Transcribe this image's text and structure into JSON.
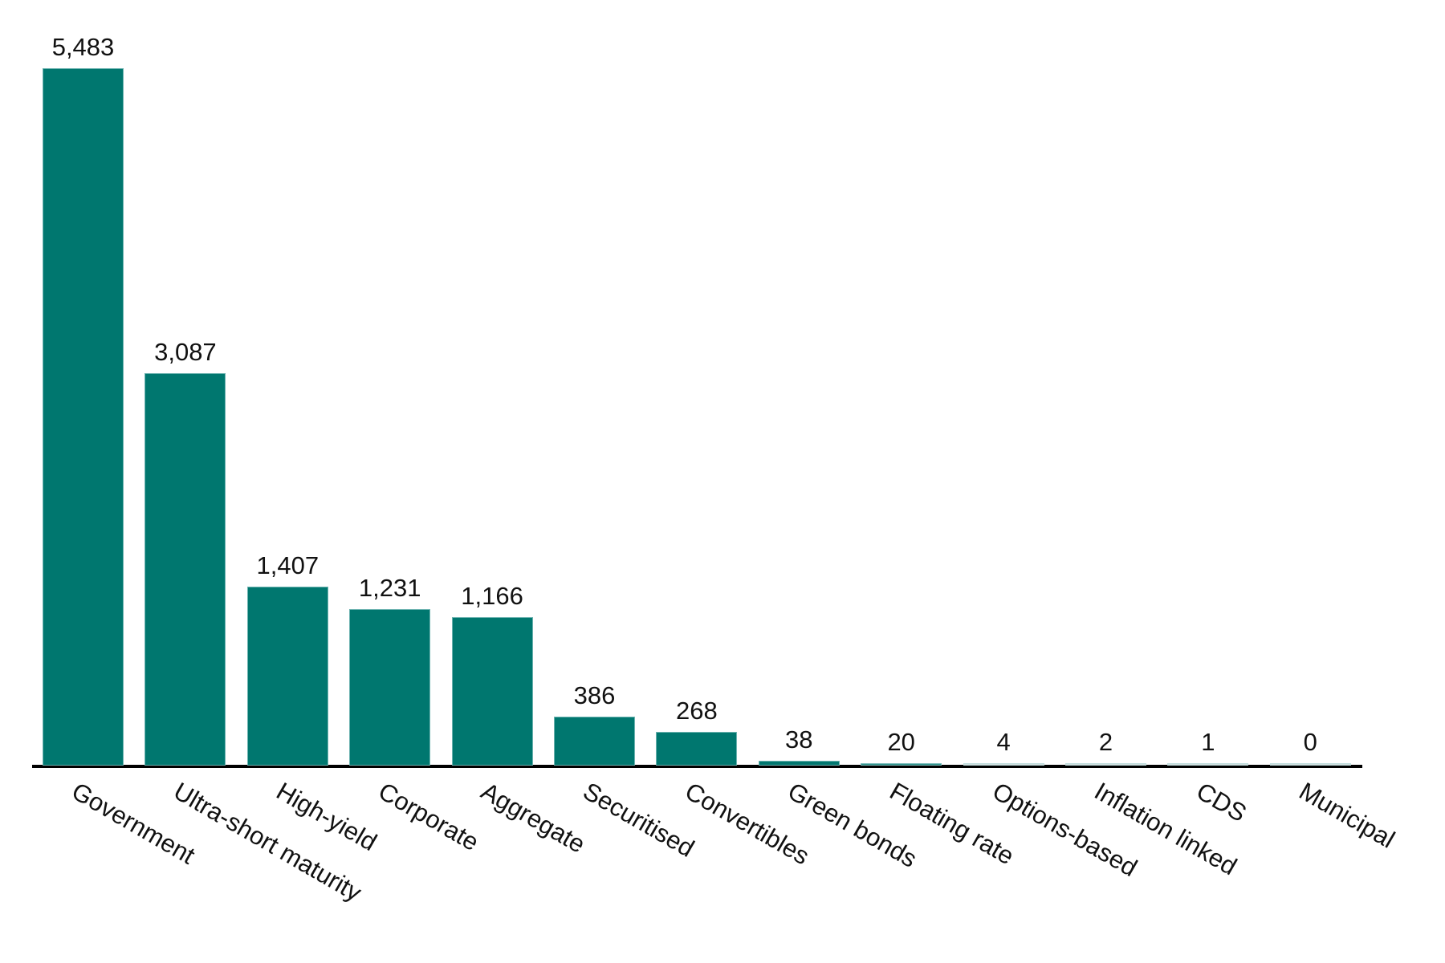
{
  "chart_data": {
    "type": "bar",
    "title": "",
    "xlabel": "",
    "ylabel": "",
    "categories": [
      "Government",
      "Ultra-short maturity",
      "High-yield",
      "Corporate",
      "Aggregate",
      "Securitised",
      "Convertibles",
      "Green bonds",
      "Floating rate",
      "Options-based",
      "Inflation linked",
      "CDS",
      "Municipal"
    ],
    "values": [
      5483,
      3087,
      1407,
      1231,
      1166,
      386,
      268,
      38,
      20,
      4,
      2,
      1,
      0
    ],
    "value_labels": [
      "5,483",
      "3,087",
      "1,407",
      "1,231",
      "1,166",
      "386",
      "268",
      "38",
      "20",
      "4",
      "2",
      "1",
      "0"
    ],
    "ylim": [
      0,
      5483
    ],
    "grid": false,
    "legend": null,
    "bar_color": "#00776F",
    "axis_color": "#000000"
  }
}
